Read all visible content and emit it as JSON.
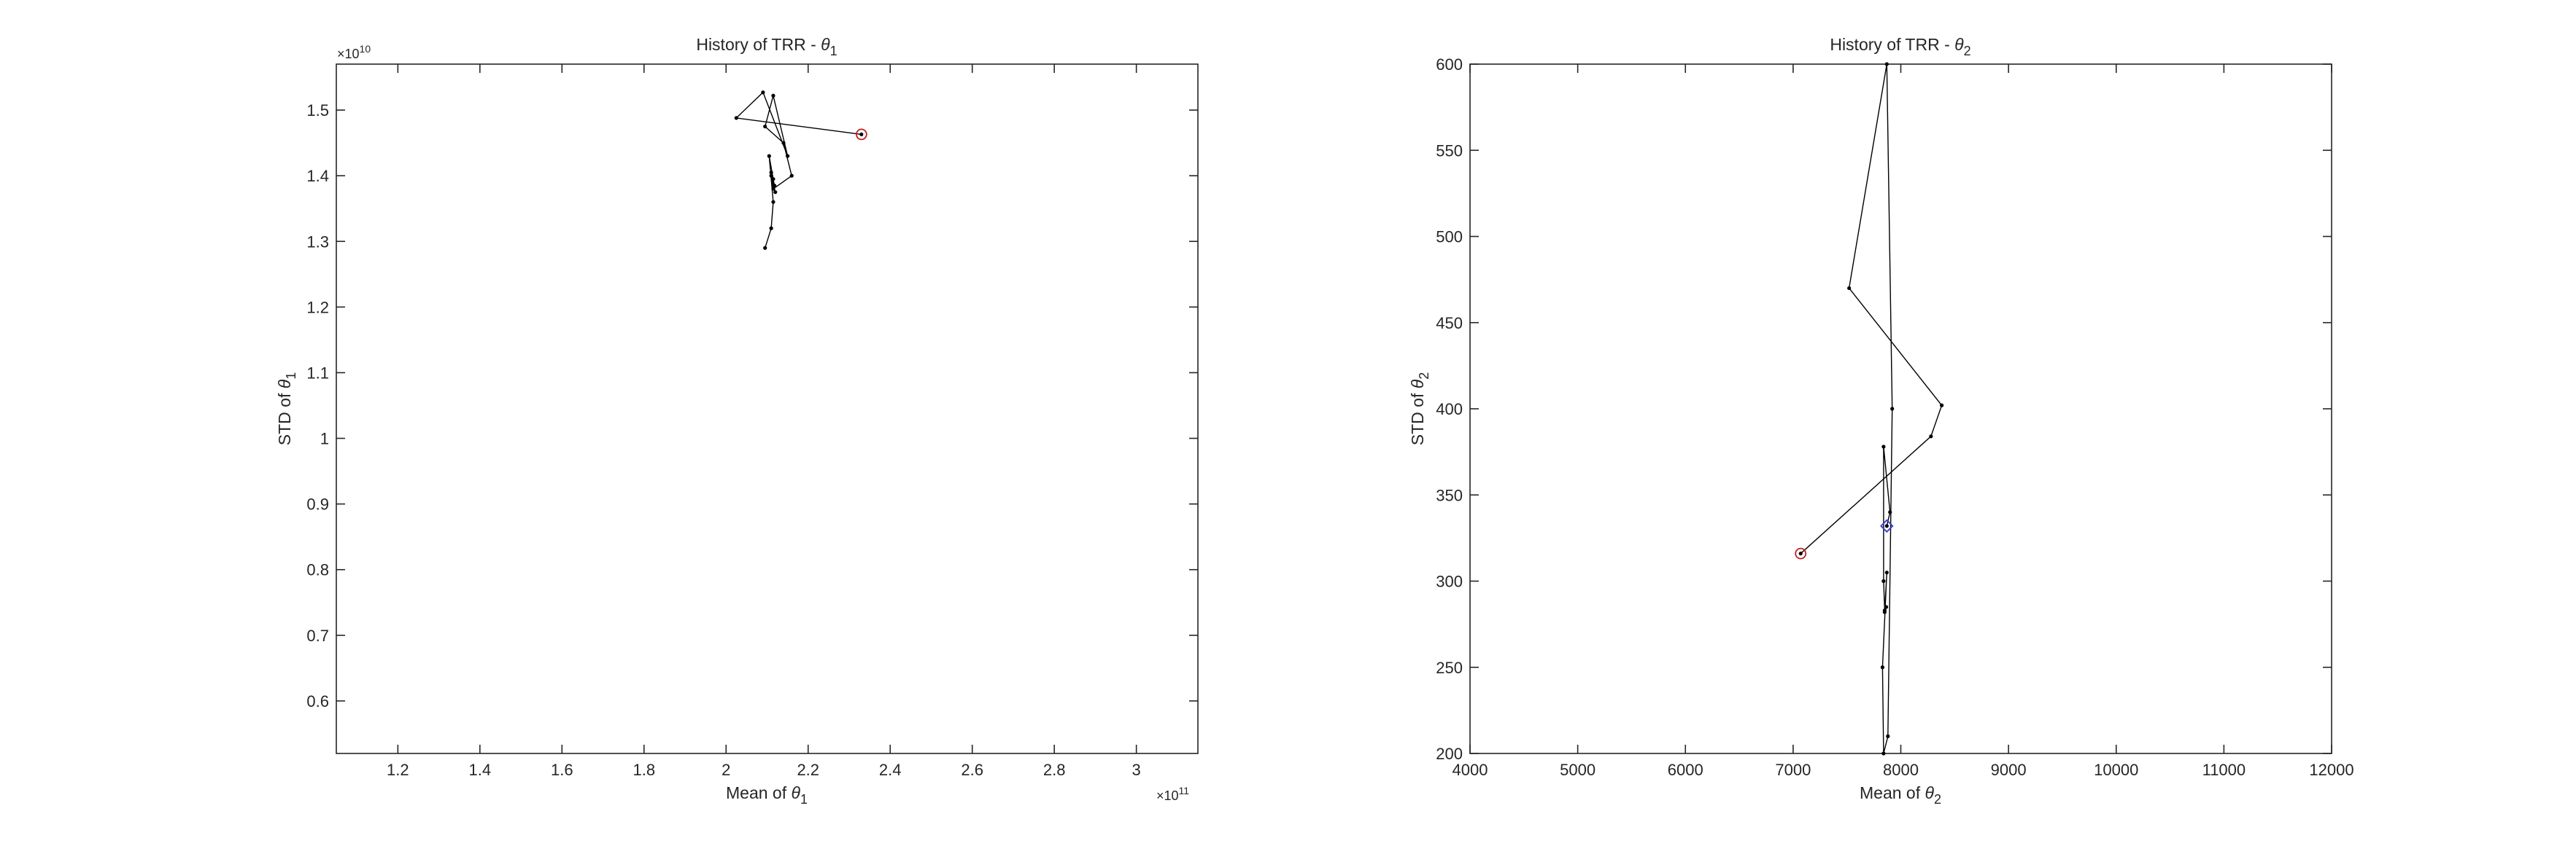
{
  "chart_data": [
    {
      "type": "line",
      "title": "History of TRR - θ1",
      "title_main": "History of TRR - ",
      "title_sym": "θ",
      "title_sub": "1",
      "xlabel_main": "Mean of ",
      "xlabel_sym": "θ",
      "xlabel_sub": "1",
      "ylabel_main": "STD of ",
      "ylabel_sym": "θ",
      "ylabel_sub": "1",
      "x_multiplier": "×10",
      "x_multiplier_exp": "11",
      "y_multiplier": "×10",
      "y_multiplier_exp": "10",
      "xlim": [
        1.05,
        3.15
      ],
      "ylim": [
        0.52,
        1.57
      ],
      "x_ticks": [
        1.2,
        1.4,
        1.6,
        1.8,
        2,
        2.2,
        2.4,
        2.6,
        2.8,
        3
      ],
      "x_tick_labels": [
        "1.2",
        "1.4",
        "1.6",
        "1.8",
        "2",
        "2.2",
        "2.4",
        "2.6",
        "2.8",
        "3"
      ],
      "y_ticks": [
        0.6,
        0.7,
        0.8,
        0.9,
        1.0,
        1.1,
        1.2,
        1.3,
        1.4,
        1.5
      ],
      "y_tick_labels": [
        "0.6",
        "0.7",
        "0.8",
        "0.9",
        "1",
        "1.1",
        "1.2",
        "1.3",
        "1.4",
        "1.5"
      ],
      "grid": false,
      "series": [
        {
          "x": [
            2.33,
            2.025,
            2.09,
            2.15,
            2.115,
            2.095,
            2.14,
            2.16,
            2.115,
            2.11,
            2.12,
            2.11,
            2.118,
            2.115,
            2.105,
            2.115,
            2.11,
            2.095
          ],
          "y": [
            1.463,
            1.488,
            1.527,
            1.43,
            1.522,
            1.475,
            1.45,
            1.4,
            1.38,
            1.4,
            1.375,
            1.405,
            1.385,
            1.395,
            1.43,
            1.36,
            1.32,
            1.29
          ]
        }
      ],
      "start_marker": "red-circle"
    },
    {
      "type": "line",
      "title": "History of TRR - θ2",
      "title_main": "History of TRR - ",
      "title_sym": "θ",
      "title_sub": "2",
      "xlabel_main": "Mean of ",
      "xlabel_sym": "θ",
      "xlabel_sub": "2",
      "ylabel_main": "STD of ",
      "ylabel_sym": "θ",
      "ylabel_sub": "2",
      "xlim": [
        4000,
        12000
      ],
      "ylim": [
        200,
        600
      ],
      "x_ticks": [
        4000,
        5000,
        6000,
        7000,
        8000,
        9000,
        10000,
        11000,
        12000
      ],
      "x_tick_labels": [
        "4000",
        "5000",
        "6000",
        "7000",
        "8000",
        "9000",
        "10000",
        "11000",
        "12000"
      ],
      "y_ticks": [
        200,
        250,
        300,
        350,
        400,
        450,
        500,
        550,
        600
      ],
      "y_tick_labels": [
        "200",
        "250",
        "300",
        "350",
        "400",
        "450",
        "500",
        "550",
        "600"
      ],
      "grid": false,
      "series": [
        {
          "x": [
            7070,
            8280,
            8380,
            7520,
            7870,
            7920,
            7880,
            7840,
            7830,
            7870,
            7850,
            7865,
            7850,
            7840,
            7840,
            7900,
            7870
          ],
          "y": [
            316,
            384,
            402,
            470,
            600,
            400,
            210,
            200,
            250,
            305,
            282,
            285,
            283,
            300,
            378,
            340,
            332
          ]
        }
      ],
      "start_marker": "red-circle",
      "end_marker": "blue-diamond"
    }
  ]
}
